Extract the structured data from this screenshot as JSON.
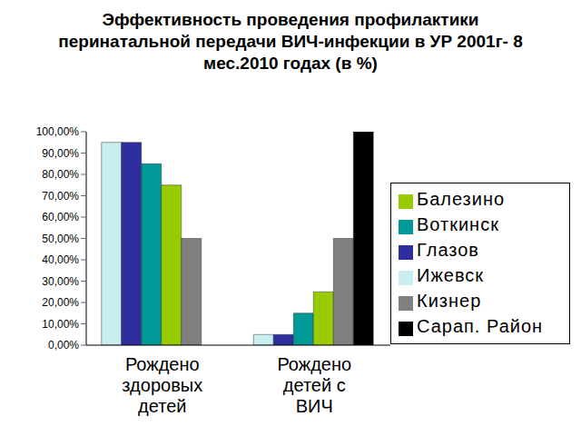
{
  "chart_data": {
    "type": "bar",
    "title": "Эффективность проведения профилактики перинатальной передачи ВИЧ-инфекции в УР 2001г- 8 мес.2010 годах (в %)",
    "categories": [
      "Рождено здоровых детей",
      "Рождено детей с ВИЧ"
    ],
    "series": [
      {
        "name": "Ижевск",
        "color": "#c8eef0",
        "values": [
          95,
          5
        ]
      },
      {
        "name": "Глазов",
        "color": "#2e2e9e",
        "values": [
          95,
          5
        ]
      },
      {
        "name": "Воткинск",
        "color": "#009999",
        "values": [
          85,
          15
        ]
      },
      {
        "name": "Балезино",
        "color": "#99cc00",
        "values": [
          75,
          25
        ]
      },
      {
        "name": "Кизнер",
        "color": "#808080",
        "values": [
          50,
          50
        ]
      },
      {
        "name": "Сарап. Район",
        "color": "#000000",
        "values": [
          0,
          100
        ]
      }
    ],
    "ylim": [
      0,
      100
    ],
    "yticks": [
      {
        "value": 0,
        "label": "0,00%"
      },
      {
        "value": 10,
        "label": "10,00%"
      },
      {
        "value": 20,
        "label": "20,00%"
      },
      {
        "value": 30,
        "label": "30,00%"
      },
      {
        "value": 40,
        "label": "40,00%"
      },
      {
        "value": 50,
        "label": "50,00%"
      },
      {
        "value": 60,
        "label": "60,00%"
      },
      {
        "value": 70,
        "label": "70,00%"
      },
      {
        "value": 80,
        "label": "80,00%"
      },
      {
        "value": 90,
        "label": "90,00%"
      },
      {
        "value": 100,
        "label": "100,00%"
      }
    ],
    "grid": false,
    "legend": "right"
  }
}
